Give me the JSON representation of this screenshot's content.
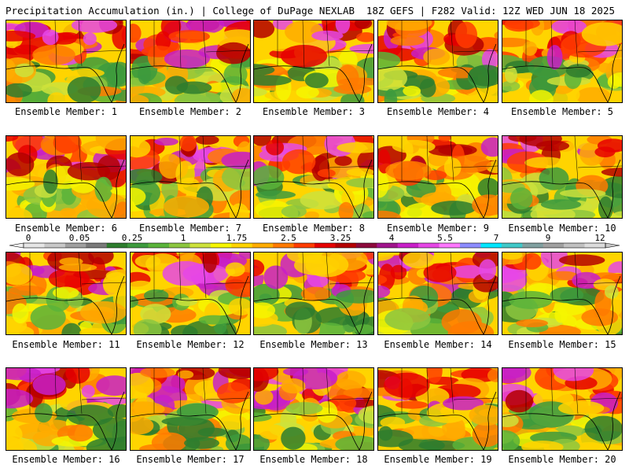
{
  "header": {
    "left": "Precipitation Accumulation (in.) | College of DuPage NEXLAB",
    "right": "18Z GEFS | F282 Valid: 12Z WED JUN 18 2025"
  },
  "colorbar": {
    "tick_labels": [
      "0",
      "0.05",
      "0.25",
      "1",
      "1.75",
      "2.5",
      "3.25",
      "4",
      "5.5",
      "7",
      "9",
      "12"
    ],
    "colors": [
      "#e6e6e6",
      "#c8c8c8",
      "#a0a0a0",
      "#7a7a7a",
      "#2e7d2e",
      "#3d9a3d",
      "#5ab33a",
      "#8cc63f",
      "#cde23c",
      "#f6f600",
      "#ffd400",
      "#ffac00",
      "#ff7a00",
      "#ff3c00",
      "#e60000",
      "#b40000",
      "#8c0a3c",
      "#a0148c",
      "#c81ec8",
      "#e646e6",
      "#ff78ff",
      "#8c8cff",
      "#00e6ff",
      "#40c8c8",
      "#80a0a0",
      "#a0a0a0",
      "#c0c0c0",
      "#dcdcdc"
    ]
  },
  "panels": [
    {
      "label": "Ensemble Member: 1"
    },
    {
      "label": "Ensemble Member: 2"
    },
    {
      "label": "Ensemble Member: 3"
    },
    {
      "label": "Ensemble Member: 4"
    },
    {
      "label": "Ensemble Member: 5"
    },
    {
      "label": "Ensemble Member: 6"
    },
    {
      "label": "Ensemble Member: 7"
    },
    {
      "label": "Ensemble Member: 8"
    },
    {
      "label": "Ensemble Member: 9"
    },
    {
      "label": "Ensemble Member: 10"
    },
    {
      "label": "Ensemble Member: 11"
    },
    {
      "label": "Ensemble Member: 12"
    },
    {
      "label": "Ensemble Member: 13"
    },
    {
      "label": "Ensemble Member: 14"
    },
    {
      "label": "Ensemble Member: 15"
    },
    {
      "label": "Ensemble Member: 16"
    },
    {
      "label": "Ensemble Member: 17"
    },
    {
      "label": "Ensemble Member: 18"
    },
    {
      "label": "Ensemble Member: 19"
    },
    {
      "label": "Ensemble Member: 20"
    }
  ]
}
